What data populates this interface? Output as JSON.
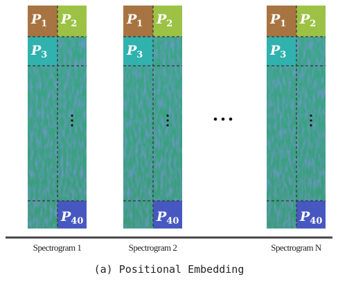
{
  "spectrograms": [
    {
      "label": "Spectrogram 1",
      "patches": [
        {
          "symbol": "P",
          "subscript": "1"
        },
        {
          "symbol": "P",
          "subscript": "2"
        },
        {
          "symbol": "P",
          "subscript": "3"
        },
        {
          "symbol": "P",
          "subscript": "40"
        }
      ]
    },
    {
      "label": "Spectrogram 2",
      "patches": [
        {
          "symbol": "P",
          "subscript": "1"
        },
        {
          "symbol": "P",
          "subscript": "2"
        },
        {
          "symbol": "P",
          "subscript": "3"
        },
        {
          "symbol": "P",
          "subscript": "40"
        }
      ]
    },
    {
      "label": "Spectrogram N",
      "patches": [
        {
          "symbol": "P",
          "subscript": "1"
        },
        {
          "symbol": "P",
          "subscript": "2"
        },
        {
          "symbol": "P",
          "subscript": "3"
        },
        {
          "symbol": "P",
          "subscript": "40"
        }
      ]
    }
  ],
  "caption": "(a) Positional Embedding"
}
